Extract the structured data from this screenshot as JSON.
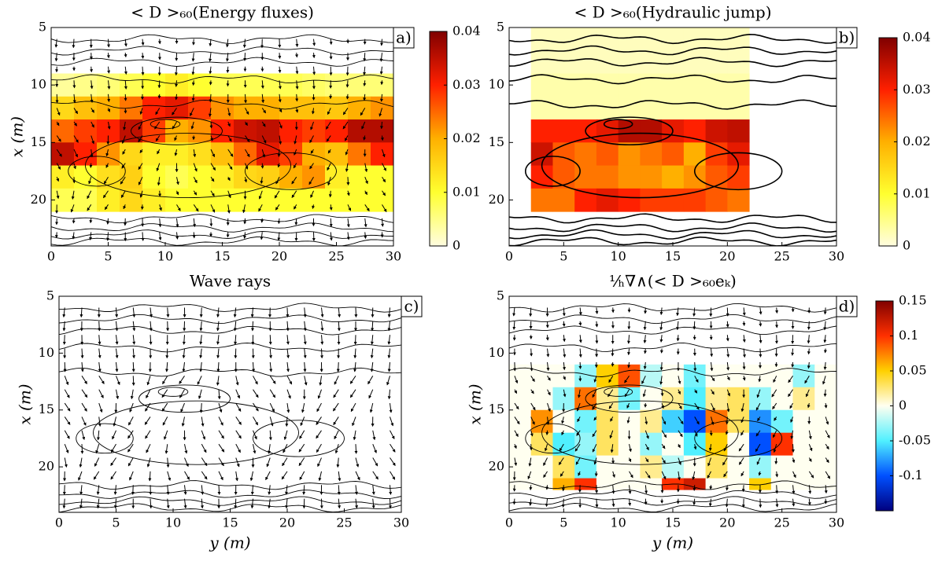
{
  "chart_data": [
    {
      "type": "heatmap",
      "title": "< D >₆₀(Energy fluxes)",
      "panel_label": "a)",
      "ylabel": "x (m)",
      "xlim": [
        0,
        30
      ],
      "ylim": [
        5,
        24
      ],
      "y_reversed": true,
      "xticks": [
        0,
        5,
        10,
        15,
        20,
        25,
        30
      ],
      "yticks": [
        5,
        10,
        15,
        20
      ],
      "x_edges": [
        0,
        2,
        4,
        6,
        8,
        10,
        12,
        14,
        16,
        18,
        20,
        22,
        24,
        26,
        28,
        30
      ],
      "y_edges": [
        9,
        11,
        13,
        15,
        17,
        19,
        21
      ],
      "z": [
        [
          0.004,
          0.005,
          0.006,
          0.008,
          0.01,
          0.012,
          0.01,
          0.008,
          0.008,
          0.008,
          0.008,
          0.007,
          0.006,
          0.006,
          0.006
        ],
        [
          0.015,
          0.018,
          0.02,
          0.024,
          0.03,
          0.032,
          0.028,
          0.022,
          0.02,
          0.02,
          0.018,
          0.018,
          0.017,
          0.02,
          0.022
        ],
        [
          0.025,
          0.028,
          0.03,
          0.035,
          0.028,
          0.02,
          0.022,
          0.03,
          0.034,
          0.035,
          0.03,
          0.028,
          0.03,
          0.036,
          0.036
        ],
        [
          0.035,
          0.03,
          0.022,
          0.015,
          0.012,
          0.012,
          0.014,
          0.018,
          0.025,
          0.032,
          0.028,
          0.02,
          0.018,
          0.024,
          0.03
        ],
        [
          0.012,
          0.01,
          0.014,
          0.016,
          0.01,
          0.008,
          0.01,
          0.012,
          0.015,
          0.016,
          0.02,
          0.022,
          0.012,
          0.01,
          0.01
        ],
        [
          0.008,
          0.008,
          0.012,
          0.015,
          0.012,
          0.01,
          0.01,
          0.01,
          0.01,
          0.01,
          0.01,
          0.01,
          0.01,
          0.01,
          0.01
        ]
      ],
      "clim": [
        0,
        0.04
      ],
      "cticks": [
        0,
        0.01,
        0.02,
        0.03,
        0.04
      ],
      "colorscale": [
        "#fffde0",
        "#ffff30",
        "#ffb000",
        "#ff2000",
        "#800000"
      ]
    },
    {
      "type": "heatmap",
      "title": "< D >₆₀(Hydraulic jump)",
      "panel_label": "b)",
      "xlim": [
        0,
        30
      ],
      "ylim": [
        5,
        24
      ],
      "y_reversed": true,
      "xticks": [
        0,
        5,
        10,
        15,
        20,
        25,
        30
      ],
      "yticks": [
        5,
        10,
        15,
        20
      ],
      "x_edges": [
        2,
        4,
        6,
        8,
        10,
        12,
        14,
        16,
        18,
        20,
        22
      ],
      "y_edges": [
        5,
        9,
        13,
        15,
        17,
        19,
        21
      ],
      "z": [
        [
          0.002,
          0.002,
          0.002,
          0.002,
          0.002,
          0.002,
          0.002,
          0.002,
          0.002,
          0.002
        ],
        [
          0.003,
          0.003,
          0.003,
          0.003,
          0.003,
          0.003,
          0.003,
          0.003,
          0.003,
          0.003
        ],
        [
          0.03,
          0.03,
          0.03,
          0.032,
          0.036,
          0.036,
          0.032,
          0.03,
          0.034,
          0.035
        ],
        [
          0.034,
          0.026,
          0.024,
          0.026,
          0.022,
          0.024,
          0.026,
          0.02,
          0.028,
          0.032
        ],
        [
          0.03,
          0.026,
          0.024,
          0.024,
          0.022,
          0.022,
          0.02,
          0.022,
          0.026,
          0.028
        ],
        [
          0.024,
          0.024,
          0.03,
          0.032,
          0.03,
          0.028,
          0.028,
          0.028,
          0.026,
          0.024
        ]
      ],
      "clim": [
        0,
        0.04
      ],
      "cticks": [
        0,
        0.01,
        0.02,
        0.03,
        0.04
      ],
      "colorscale": [
        "#fffde0",
        "#ffff30",
        "#ffb000",
        "#ff2000",
        "#800000"
      ]
    },
    {
      "type": "quiver",
      "title": "Wave rays",
      "panel_label": "c)",
      "xlabel": "y (m)",
      "ylabel": "x (m)",
      "xlim": [
        0,
        30
      ],
      "ylim": [
        5,
        24
      ],
      "y_reversed": true,
      "xticks": [
        0,
        5,
        10,
        15,
        20,
        25,
        30
      ],
      "yticks": [
        5,
        10,
        15,
        20
      ]
    },
    {
      "type": "heatmap",
      "title": "¹⁄ₕ∇∧(< D >₆₀eₖ)",
      "panel_label": "d)",
      "xlabel": "y (m)",
      "ylabel": "x (m)",
      "xlim": [
        0,
        30
      ],
      "ylim": [
        5,
        24
      ],
      "y_reversed": true,
      "xticks": [
        0,
        5,
        10,
        15,
        20,
        25,
        30
      ],
      "yticks": [
        5,
        10,
        15,
        20
      ],
      "x_edges": [
        0,
        2,
        4,
        6,
        8,
        10,
        12,
        14,
        16,
        18,
        20,
        22,
        24,
        26,
        28,
        30
      ],
      "y_edges": [
        11,
        13,
        15,
        17,
        19,
        21,
        22
      ],
      "z": [
        [
          0,
          0,
          0,
          -0.03,
          0.05,
          0.09,
          -0.02,
          0,
          -0.04,
          0,
          0,
          0,
          0,
          -0.03,
          0
        ],
        [
          0,
          0,
          -0.03,
          0.08,
          0.02,
          -0.04,
          0,
          0.02,
          -0.05,
          0.02,
          0.03,
          -0.03,
          0,
          0.02,
          0
        ],
        [
          0,
          0.07,
          0,
          -0.04,
          0.03,
          0,
          0.02,
          -0.06,
          -0.1,
          0.08,
          0.03,
          -0.08,
          -0.04,
          0,
          0
        ],
        [
          0,
          0.03,
          -0.05,
          -0.03,
          0.03,
          0,
          -0.03,
          0,
          -0.05,
          0.05,
          0,
          -0.1,
          0.1,
          0,
          0
        ],
        [
          0,
          0,
          0.03,
          -0.04,
          0,
          0,
          0.02,
          -0.02,
          0,
          0.03,
          0,
          -0.03,
          0,
          0,
          0
        ],
        [
          0,
          0,
          0.06,
          0.1,
          0,
          0,
          0,
          0.1,
          0.12,
          0,
          0,
          0.05,
          0,
          0,
          0
        ]
      ],
      "clim": [
        -0.15,
        0.15
      ],
      "cticks": [
        -0.1,
        -0.05,
        0,
        0.05,
        0.1,
        0.15
      ],
      "colorscale": [
        "#00007f",
        "#0050ff",
        "#50f0ff",
        "#fffff0",
        "#ffd000",
        "#ff3000",
        "#800000"
      ]
    }
  ]
}
